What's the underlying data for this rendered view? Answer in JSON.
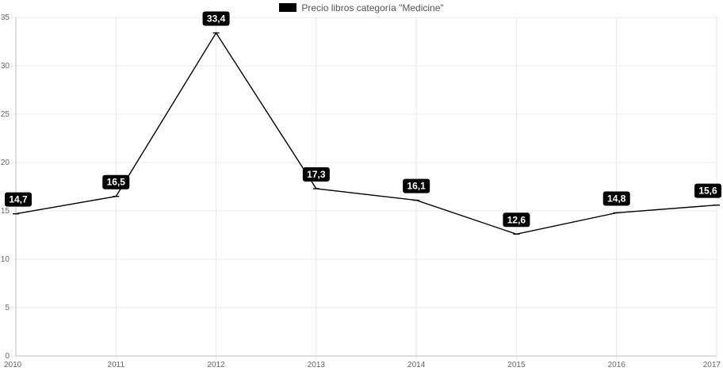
{
  "chart_data": {
    "type": "line",
    "title": "",
    "xlabel": "",
    "ylabel": "",
    "categories": [
      "2010",
      "2011",
      "2012",
      "2013",
      "2014",
      "2015",
      "2016",
      "2017"
    ],
    "series": [
      {
        "name": "Precio libros categoría \"Medicine\"",
        "values": [
          14.7,
          16.5,
          33.4,
          17.3,
          16.1,
          12.6,
          14.8,
          15.6
        ],
        "labels": [
          "14,7",
          "16,5",
          "33,4",
          "17,3",
          "16,1",
          "12,6",
          "14,8",
          "15,6"
        ],
        "color": "#000000"
      }
    ],
    "ylim": [
      0,
      35
    ],
    "yticks": [
      0,
      5,
      10,
      15,
      20,
      25,
      30,
      35
    ],
    "grid": true,
    "legend_position": "top-center"
  }
}
